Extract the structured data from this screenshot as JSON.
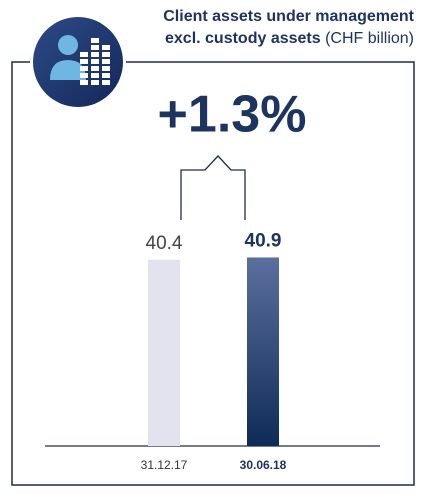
{
  "chart_data": {
    "type": "bar",
    "title": "Client assets under management",
    "subtitle": "excl. custody assets",
    "unit": "(CHF billion)",
    "annotation": "+1.3%",
    "categories": [
      "31.12.17",
      "30.06.18"
    ],
    "values": [
      40.4,
      40.9
    ],
    "colors": [
      "#e2e3ee",
      "#0f2b58"
    ],
    "ylim": [
      0,
      41
    ]
  }
}
